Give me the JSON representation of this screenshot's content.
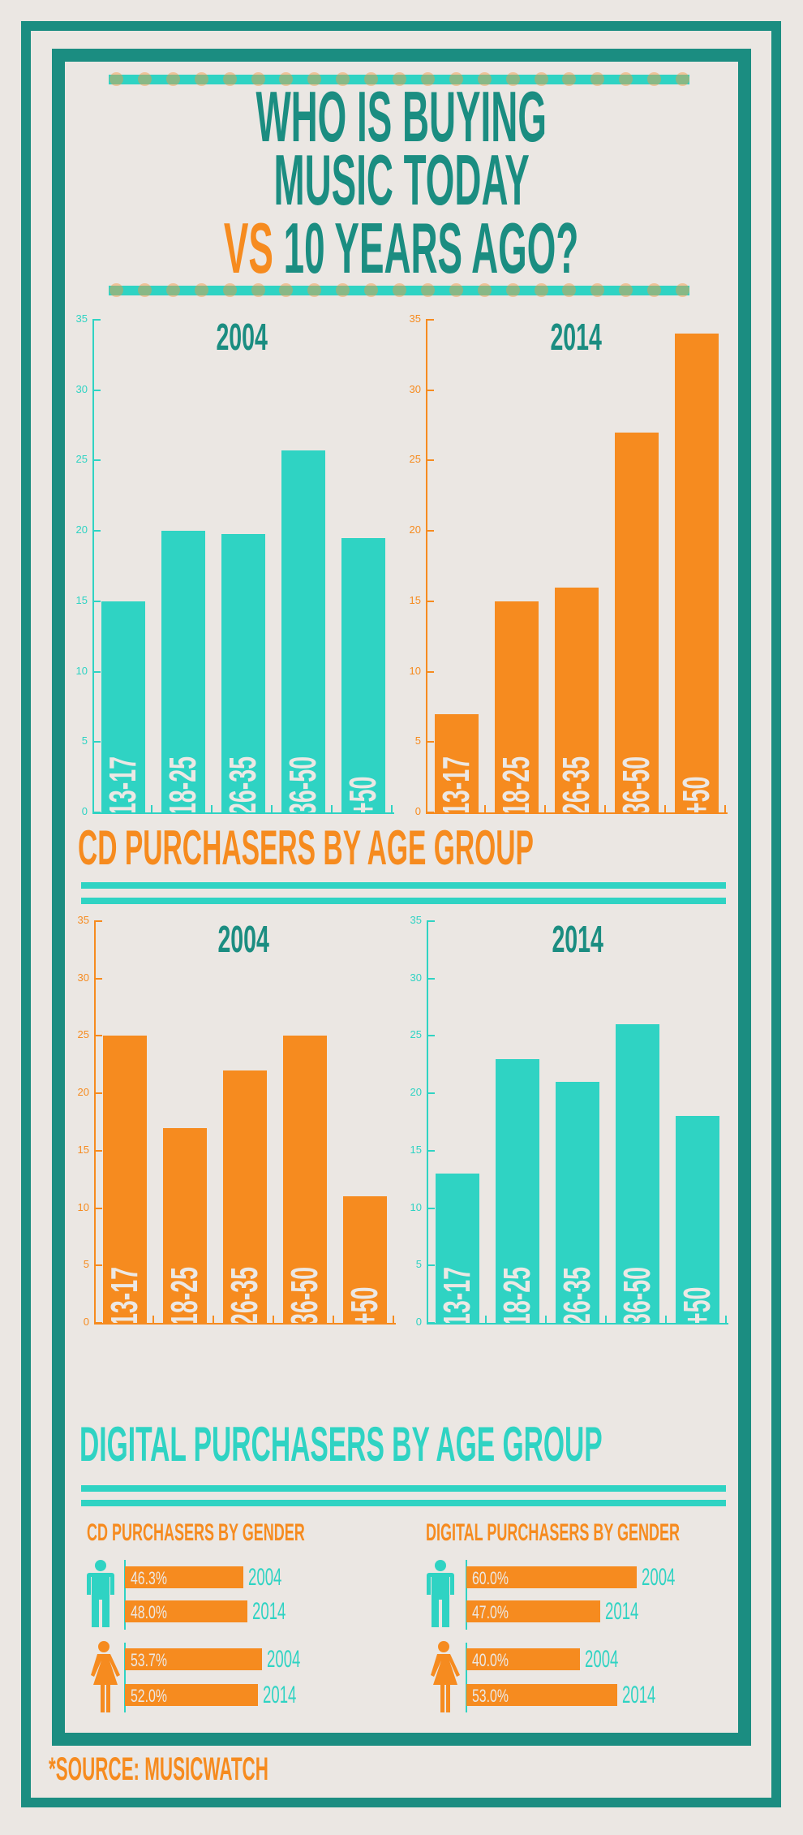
{
  "title": {
    "line1": "WHO IS BUYING",
    "line2": "MUSIC TODAY",
    "line3_vs": "VS",
    "line3_rest": "10 YEARS AGO?"
  },
  "colors": {
    "teal_dark": "#1b8d81",
    "teal_light": "#2fd3c3",
    "orange": "#f68b1f",
    "background": "#ebe7e3"
  },
  "sections": {
    "cd_age": "CD PURCHASERS BY AGE GROUP",
    "digital_age": "DIGITAL PURCHASERS BY AGE GROUP",
    "cd_gender": "CD PURCHASERS BY GENDER",
    "digital_gender": "DIGITAL PURCHASERS BY GENDER"
  },
  "source": "*SOURCE: MUSICWATCH",
  "chart_data": [
    {
      "type": "bar",
      "title": "2004",
      "group": "CD PURCHASERS BY AGE GROUP",
      "categories": [
        "13-17",
        "18-25",
        "26-35",
        "36-50",
        "+50"
      ],
      "values": [
        15,
        20,
        19.8,
        25.7,
        19.5
      ],
      "yticks": [
        "0",
        "5",
        "10",
        "15",
        "20",
        "25",
        "30",
        "35"
      ],
      "ylim": [
        0,
        35
      ],
      "color": "#2fd3c3",
      "axis_color": "#2fd3c3"
    },
    {
      "type": "bar",
      "title": "2014",
      "group": "CD PURCHASERS BY AGE GROUP",
      "categories": [
        "13-17",
        "18-25",
        "26-35",
        "36-50",
        "+50"
      ],
      "values": [
        7,
        15,
        16,
        27,
        34
      ],
      "yticks": [
        "0",
        "5",
        "10",
        "15",
        "20",
        "25",
        "30",
        "35"
      ],
      "ylim": [
        0,
        35
      ],
      "color": "#f68b1f",
      "axis_color": "#f68b1f"
    },
    {
      "type": "bar",
      "title": "2004",
      "group": "DIGITAL PURCHASERS BY AGE GROUP",
      "categories": [
        "13-17",
        "18-25",
        "26-35",
        "36-50",
        "+50"
      ],
      "values": [
        25,
        17,
        22,
        25,
        11
      ],
      "yticks": [
        "0",
        "5",
        "10",
        "15",
        "20",
        "25",
        "30",
        "35"
      ],
      "ylim": [
        0,
        35
      ],
      "color": "#f68b1f",
      "axis_color": "#f68b1f"
    },
    {
      "type": "bar",
      "title": "2014",
      "group": "DIGITAL PURCHASERS BY AGE GROUP",
      "categories": [
        "13-17",
        "18-25",
        "26-35",
        "36-50",
        "+50"
      ],
      "values": [
        13,
        23,
        21,
        26,
        18
      ],
      "yticks": [
        "0",
        "5",
        "10",
        "15",
        "20",
        "25",
        "30",
        "35"
      ],
      "ylim": [
        0,
        35
      ],
      "color": "#2fd3c3",
      "axis_color": "#2fd3c3"
    },
    {
      "type": "bar",
      "orientation": "horizontal",
      "title": "CD PURCHASERS BY GENDER",
      "series": [
        {
          "name": "Male",
          "categories": [
            "2004",
            "2014"
          ],
          "values": [
            46.3,
            48.0
          ],
          "labels": [
            "46.3%",
            "48.0%"
          ]
        },
        {
          "name": "Female",
          "categories": [
            "2004",
            "2014"
          ],
          "values": [
            53.7,
            52.0
          ],
          "labels": [
            "53.7%",
            "52.0%"
          ]
        }
      ]
    },
    {
      "type": "bar",
      "orientation": "horizontal",
      "title": "DIGITAL PURCHASERS BY GENDER",
      "series": [
        {
          "name": "Male",
          "categories": [
            "2004",
            "2014"
          ],
          "values": [
            60.0,
            47.0
          ],
          "labels": [
            "60.0%",
            "47.0%"
          ]
        },
        {
          "name": "Female",
          "categories": [
            "2004",
            "2014"
          ],
          "values": [
            40.0,
            53.0
          ],
          "labels": [
            "40.0%",
            "53.0%"
          ]
        }
      ]
    }
  ]
}
